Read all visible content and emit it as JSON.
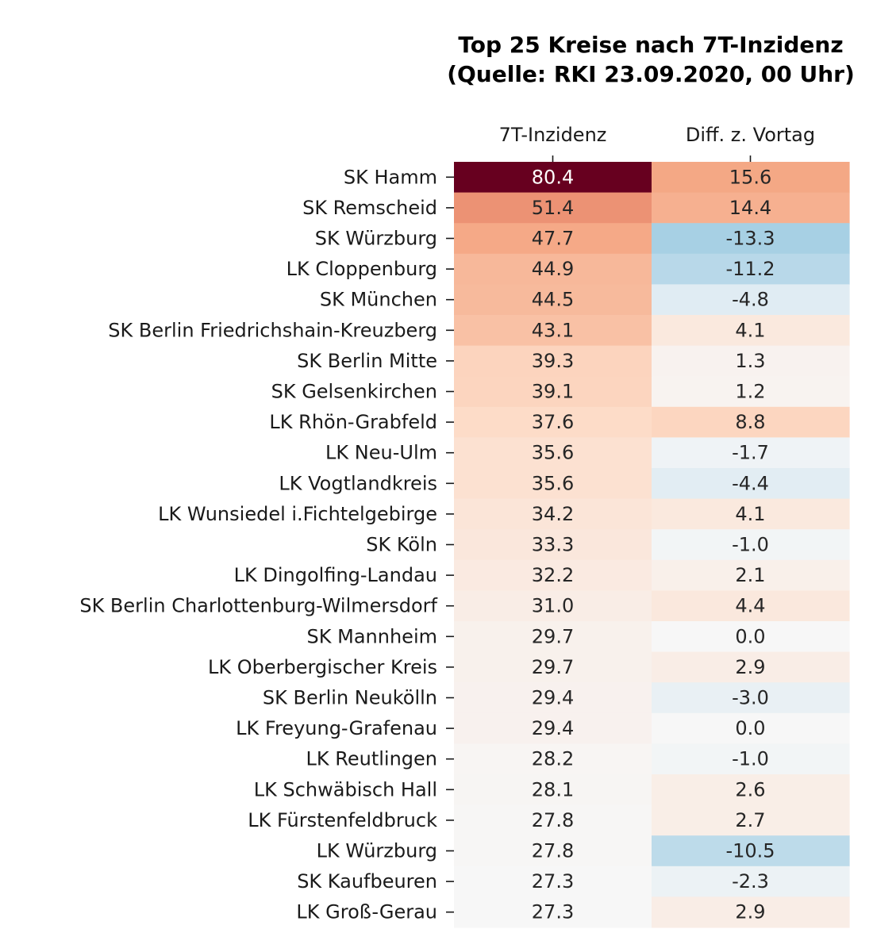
{
  "chart_data": {
    "type": "heatmap",
    "title_line1": "Top 25 Kreise nach 7T-Inzidenz",
    "title_line2": "(Quelle: RKI 23.09.2020, 00 Uhr)",
    "columns": [
      "7T-Inzidenz",
      "Diff. z. Vortag"
    ],
    "rows": [
      "SK Hamm",
      "SK Remscheid",
      "SK Würzburg",
      "LK Cloppenburg",
      "SK München",
      "SK Berlin Friedrichshain-Kreuzberg",
      "SK Berlin Mitte",
      "SK Gelsenkirchen",
      "LK Rhön-Grabfeld",
      "LK Neu-Ulm",
      "LK Vogtlandkreis",
      "LK Wunsiedel i.Fichtelgebirge",
      "SK Köln",
      "LK Dingolfing-Landau",
      "SK Berlin Charlottenburg-Wilmersdorf",
      "SK Mannheim",
      "LK Oberbergischer Kreis",
      "SK Berlin Neukölln",
      "LK Freyung-Grafenau",
      "LK Reutlingen",
      "LK Schwäbisch Hall",
      "LK Fürstenfeldbruck",
      "LK Würzburg",
      "SK Kaufbeuren",
      "LK Groß-Gerau"
    ],
    "incidence": [
      80.4,
      51.4,
      47.7,
      44.9,
      44.5,
      43.1,
      39.3,
      39.1,
      37.6,
      35.6,
      35.6,
      34.2,
      33.3,
      32.2,
      31.0,
      29.7,
      29.7,
      29.4,
      29.4,
      28.2,
      28.1,
      27.8,
      27.8,
      27.3,
      27.3
    ],
    "diff": [
      15.6,
      14.4,
      -13.3,
      -11.2,
      -4.8,
      4.1,
      1.3,
      1.2,
      8.8,
      -1.7,
      -4.4,
      4.1,
      -1.0,
      2.1,
      4.4,
      0.0,
      2.9,
      -3.0,
      0.0,
      -1.0,
      2.6,
      2.7,
      -10.5,
      -2.3,
      2.9
    ],
    "colormap": "RdBu_r",
    "incidence_color_range": [
      27.3,
      80.4
    ],
    "diff_color_range": [
      -40,
      40
    ]
  }
}
